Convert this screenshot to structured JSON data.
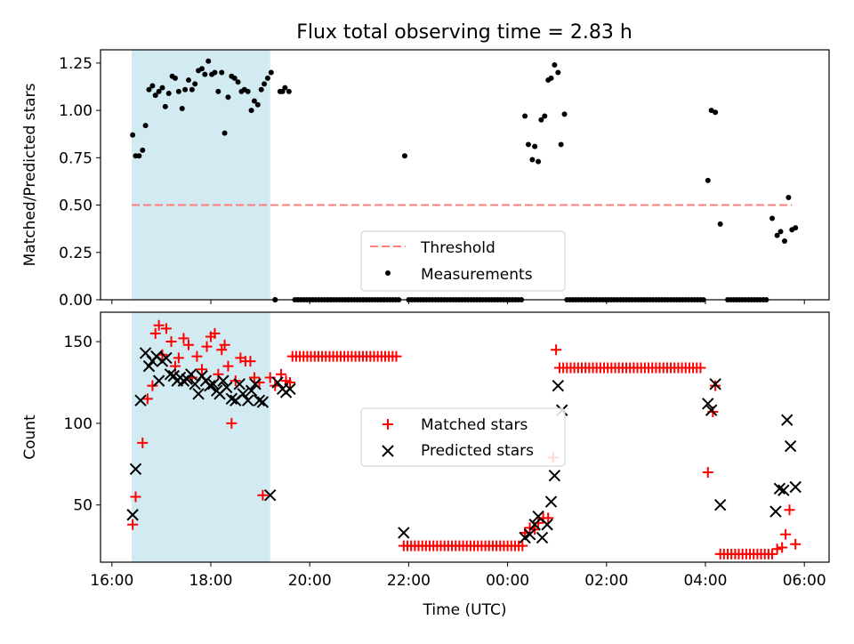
{
  "title": "Flux total observing time = 2.83 h",
  "colors": {
    "band": "#add8e6",
    "threshold": "#ff7f7f",
    "matched": "#ff0000",
    "predicted": "#000000",
    "measurement": "#000000"
  },
  "chart_data": [
    {
      "type": "scatter",
      "ylabel": "Matched/Predicted stars",
      "xlabel": "",
      "ylim": [
        0,
        1.32
      ],
      "yticks": [
        "0.00",
        "0.25",
        "0.50",
        "0.75",
        "1.00",
        "1.25"
      ],
      "ytick_values": [
        0,
        0.25,
        0.5,
        0.75,
        1.0,
        1.25
      ],
      "shaded_band_hours": [
        16.4,
        19.2
      ],
      "legend": {
        "placement": "lower-center",
        "entries": [
          "Threshold",
          "Measurements"
        ]
      },
      "threshold": {
        "name": "Threshold",
        "value": 0.5,
        "x_range_hours": [
          16.4,
          29.75
        ]
      },
      "series": [
        {
          "name": "Measurements",
          "x_hours": [
            16.42,
            16.48,
            16.55,
            16.62,
            16.68,
            16.75,
            16.82,
            16.88,
            16.95,
            17.02,
            17.08,
            17.15,
            17.22,
            17.28,
            17.35,
            17.42,
            17.48,
            17.55,
            17.62,
            17.68,
            17.75,
            17.82,
            17.88,
            17.95,
            18.02,
            18.08,
            18.15,
            18.22,
            18.28,
            18.35,
            18.42,
            18.48,
            18.55,
            18.62,
            18.68,
            18.75,
            18.82,
            18.88,
            18.95,
            19.02,
            19.08,
            19.15,
            19.22,
            19.3,
            19.4,
            19.45,
            19.5,
            19.58,
            21.92,
            24.35,
            24.42,
            24.5,
            24.55,
            24.62,
            24.68,
            24.75,
            24.82,
            24.88,
            24.95,
            25.02,
            25.08,
            25.15,
            28.05,
            28.12,
            28.2,
            28.3,
            29.35,
            29.45,
            29.52,
            29.6,
            29.68,
            29.75,
            29.82
          ],
          "y": [
            0.87,
            0.76,
            0.76,
            0.79,
            0.92,
            1.11,
            1.13,
            1.08,
            1.1,
            1.12,
            1.02,
            1.09,
            1.18,
            1.17,
            1.1,
            1.01,
            1.11,
            1.16,
            1.11,
            1.14,
            1.21,
            1.22,
            1.19,
            1.26,
            1.19,
            1.2,
            1.1,
            1.2,
            0.88,
            1.07,
            1.18,
            1.17,
            1.15,
            1.1,
            1.11,
            1.1,
            1.0,
            1.05,
            1.03,
            1.11,
            1.14,
            1.17,
            1.2,
            0.0,
            1.1,
            1.1,
            1.12,
            1.1,
            0.76,
            0.97,
            0.82,
            0.74,
            0.81,
            0.73,
            0.95,
            0.97,
            1.16,
            1.17,
            1.24,
            1.2,
            0.82,
            0.98,
            0.63,
            1.0,
            0.99,
            0.4,
            0.43,
            0.34,
            0.36,
            0.31,
            0.54,
            0.37,
            0.38
          ],
          "zero_points_hours": [
            [
              19.3
            ],
            [
              19.7,
              21.85
            ],
            [
              22.0,
              24.3
            ],
            [
              25.2,
              28.0
            ],
            [
              28.45,
              29.25
            ]
          ]
        }
      ]
    },
    {
      "type": "scatter",
      "ylabel": "Count",
      "xlabel": "Time (UTC)",
      "ylim": [
        15,
        168
      ],
      "yticks": [
        "50",
        "100",
        "150"
      ],
      "ytick_values": [
        50,
        100,
        150
      ],
      "xticks": [
        "16:00",
        "18:00",
        "20:00",
        "22:00",
        "00:00",
        "02:00",
        "04:00",
        "06:00"
      ],
      "xtick_hours": [
        16,
        18,
        20,
        22,
        24,
        26,
        28,
        30
      ],
      "xlim_hours": [
        15.77,
        30.5
      ],
      "shaded_band_hours": [
        16.4,
        19.2
      ],
      "legend": {
        "placement": "center",
        "entries": [
          "Matched stars",
          "Predicted stars"
        ]
      },
      "series": [
        {
          "name": "Matched stars",
          "marker": "+",
          "x_hours": [
            16.42,
            16.48,
            16.62,
            16.72,
            16.82,
            16.88,
            16.95,
            17.02,
            17.1,
            17.2,
            17.28,
            17.35,
            17.45,
            17.55,
            17.62,
            17.72,
            17.82,
            17.92,
            18.0,
            18.08,
            18.15,
            18.22,
            18.28,
            18.35,
            18.42,
            18.5,
            18.6,
            18.7,
            18.8,
            18.88,
            18.98,
            19.05,
            19.2,
            19.3,
            19.42,
            19.52,
            19.6,
            24.35,
            24.45,
            24.55,
            24.62,
            24.72,
            24.82,
            24.92,
            24.98,
            28.05,
            28.15,
            28.2,
            29.45,
            29.55,
            29.62,
            29.7,
            29.82
          ],
          "y": [
            38,
            55,
            88,
            115,
            123,
            155,
            160,
            142,
            158,
            150,
            135,
            140,
            152,
            148,
            128,
            141,
            133,
            147,
            153,
            155,
            130,
            145,
            148,
            135,
            100,
            126,
            140,
            138,
            138,
            128,
            125,
            56,
            128,
            123,
            130,
            126,
            125,
            33,
            36,
            35,
            39,
            42,
            42,
            79,
            145,
            70,
            107,
            123,
            23,
            24,
            32,
            47,
            26
          ],
          "plateaus": [
            {
              "x_range_hours": [
                19.65,
                21.8
              ],
              "y": 141
            },
            {
              "x_range_hours": [
                21.9,
                24.3
              ],
              "y": 25
            },
            {
              "x_range_hours": [
                25.05,
                27.95
              ],
              "y": 134
            },
            {
              "x_range_hours": [
                28.3,
                29.4
              ],
              "y": 20
            }
          ]
        },
        {
          "name": "Predicted stars",
          "marker": "x",
          "x_hours": [
            16.42,
            16.48,
            16.58,
            16.68,
            16.75,
            16.82,
            16.9,
            16.95,
            17.02,
            17.1,
            17.18,
            17.25,
            17.32,
            17.38,
            17.45,
            17.52,
            17.6,
            17.68,
            17.75,
            17.82,
            17.9,
            17.98,
            18.05,
            18.12,
            18.18,
            18.25,
            18.32,
            18.42,
            18.5,
            18.58,
            18.65,
            18.75,
            18.82,
            18.9,
            18.98,
            19.05,
            19.2,
            19.35,
            19.45,
            19.52,
            19.6,
            21.9,
            24.35,
            24.45,
            24.55,
            24.62,
            24.7,
            24.8,
            24.88,
            24.95,
            25.02,
            25.1,
            28.05,
            28.12,
            28.2,
            28.3,
            29.42,
            29.5,
            29.58,
            29.65,
            29.72,
            29.82
          ],
          "y": [
            44,
            72,
            114,
            143,
            135,
            138,
            141,
            126,
            138,
            140,
            130,
            129,
            126,
            128,
            126,
            127,
            130,
            124,
            118,
            129,
            126,
            123,
            124,
            120,
            118,
            126,
            122,
            115,
            114,
            124,
            118,
            114,
            120,
            124,
            114,
            113,
            56,
            125,
            121,
            119,
            121,
            33,
            30,
            32,
            38,
            43,
            30,
            38,
            52,
            68,
            123,
            108,
            112,
            108,
            124,
            50,
            46,
            60,
            59,
            102,
            86,
            61
          ]
        }
      ]
    }
  ]
}
